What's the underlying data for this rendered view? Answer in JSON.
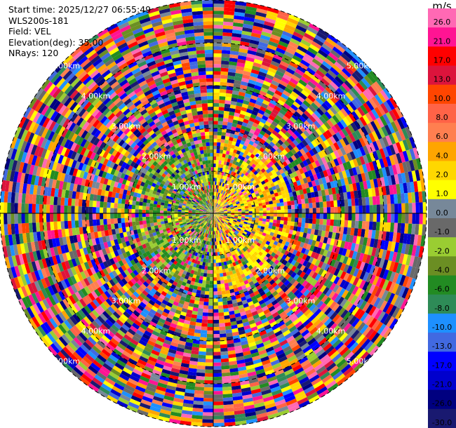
{
  "header": {
    "start_time": "Start time: 2025/12/27 06:55:49",
    "instrument": "WLS200s-181",
    "field": "Field: VEL",
    "elevation": "Elevation(deg): 35.00",
    "nrays": "NRays: 120"
  },
  "colorbar": {
    "unit": "m/s",
    "levels": [
      "26.0",
      "21.0",
      "17.0",
      "13.0",
      "10.0",
      "8.0",
      "6.0",
      "4.0",
      "2.0",
      "1.0",
      "0.0",
      "-1.0",
      "-2.0",
      "-4.0",
      "-6.0",
      "-8.0",
      "-10.0",
      "-13.0",
      "-17.0",
      "-21.0",
      "-26.0",
      "-30.0"
    ],
    "colors": [
      "#ff69b4",
      "#ff1493",
      "#ff0000",
      "#dc143c",
      "#ff4500",
      "#ff6347",
      "#ff7f50",
      "#ffa500",
      "#ffd700",
      "#ffff00",
      "#778899",
      "#696969",
      "#9acd32",
      "#6b8e23",
      "#228b22",
      "#2e8b57",
      "#1e90ff",
      "#4169e1",
      "#0000ff",
      "#0000cd",
      "#000080",
      "#191970"
    ]
  },
  "chart_data": {
    "type": "heatmap",
    "projection": "polar-ppi",
    "field": "VEL",
    "unit": "m/s",
    "elevation_deg": 35.0,
    "nrays": 120,
    "range_rings_km": [
      1,
      2,
      3,
      4,
      5
    ],
    "range_labels": [
      "1.00km",
      "2.00km",
      "3.00km",
      "4.00km",
      "5.00km"
    ],
    "color_levels": [
      -30,
      -26,
      -21,
      -17,
      -13,
      -10,
      -8,
      -6,
      -4,
      -2,
      -1,
      0,
      1,
      2,
      4,
      6,
      8,
      10,
      13,
      17,
      21,
      26
    ]
  }
}
